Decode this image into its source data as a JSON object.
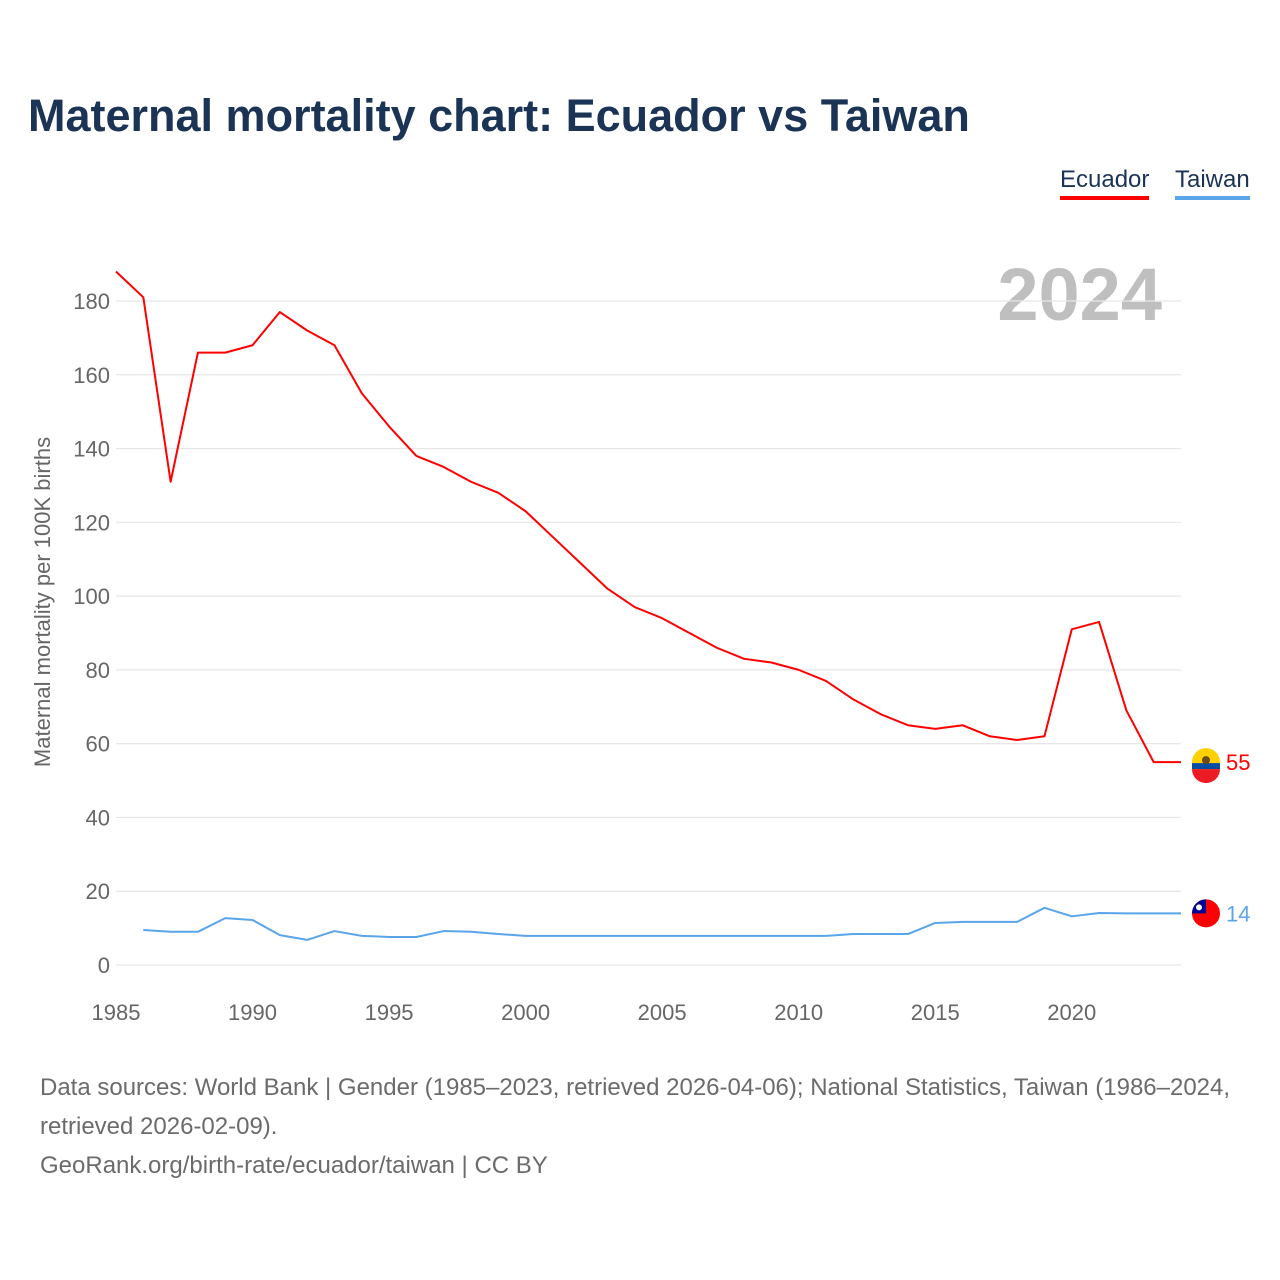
{
  "title": "Maternal mortality chart: Ecuador vs Taiwan",
  "legend": {
    "ecuador": "Ecuador",
    "taiwan": "Taiwan"
  },
  "year_label": "2024",
  "sources": {
    "line1": "Data sources: World Bank | Gender (1985–2023, retrieved 2026-04-06); National Statistics, Taiwan (1986–2024, retrieved 2026-02-09).",
    "line2": "GeoRank.org/birth-rate/ecuador/taiwan | CC BY"
  },
  "chart_data": {
    "type": "line",
    "title": "Maternal mortality chart: Ecuador vs Taiwan",
    "xlabel": "",
    "ylabel": "Maternal mortality per 100K births",
    "xlim": [
      1985,
      2024
    ],
    "ylim": [
      0,
      188
    ],
    "xticks": [
      1985,
      1990,
      1995,
      2000,
      2005,
      2010,
      2015,
      2020
    ],
    "yticks": [
      0,
      20,
      40,
      60,
      80,
      100,
      120,
      140,
      160,
      180
    ],
    "grid": true,
    "legend_position": "top-right",
    "series": [
      {
        "name": "Ecuador",
        "color": "#ff0000",
        "end_label": "55",
        "x": [
          1985,
          1986,
          1987,
          1988,
          1989,
          1990,
          1991,
          1992,
          1993,
          1994,
          1995,
          1996,
          1997,
          1998,
          1999,
          2000,
          2001,
          2002,
          2003,
          2004,
          2005,
          2006,
          2007,
          2008,
          2009,
          2010,
          2011,
          2012,
          2013,
          2014,
          2015,
          2016,
          2017,
          2018,
          2019,
          2020,
          2021,
          2022,
          2023
        ],
        "values": [
          188,
          181,
          131,
          166,
          166,
          168,
          177,
          172,
          168,
          155,
          146,
          138,
          135,
          131,
          128,
          123,
          116,
          109,
          102,
          97,
          94,
          90,
          86,
          83,
          82,
          80,
          77,
          72,
          68,
          65,
          64,
          65,
          62,
          61,
          62,
          91,
          93,
          69,
          55
        ]
      },
      {
        "name": "Taiwan",
        "color": "#5aa5ea",
        "end_label": "14",
        "x": [
          1986,
          1987,
          1988,
          1989,
          1990,
          1991,
          1992,
          1993,
          1994,
          1995,
          1996,
          1997,
          1998,
          1999,
          2000,
          2001,
          2002,
          2003,
          2004,
          2005,
          2006,
          2007,
          2008,
          2009,
          2010,
          2011,
          2012,
          2013,
          2014,
          2015,
          2016,
          2017,
          2018,
          2019,
          2020,
          2021,
          2022,
          2023,
          2024
        ],
        "values": [
          9.5,
          9,
          9,
          12.7,
          12.2,
          8.1,
          6.8,
          9.2,
          7.9,
          7.6,
          7.6,
          9.2,
          9,
          8.4,
          7.9,
          7.9,
          7.9,
          7.9,
          7.9,
          7.9,
          7.9,
          7.9,
          7.9,
          7.9,
          7.9,
          7.9,
          8.4,
          8.4,
          8.4,
          11.4,
          11.7,
          11.7,
          11.7,
          15.5,
          13.2,
          14.1,
          14,
          14,
          14
        ]
      }
    ]
  }
}
